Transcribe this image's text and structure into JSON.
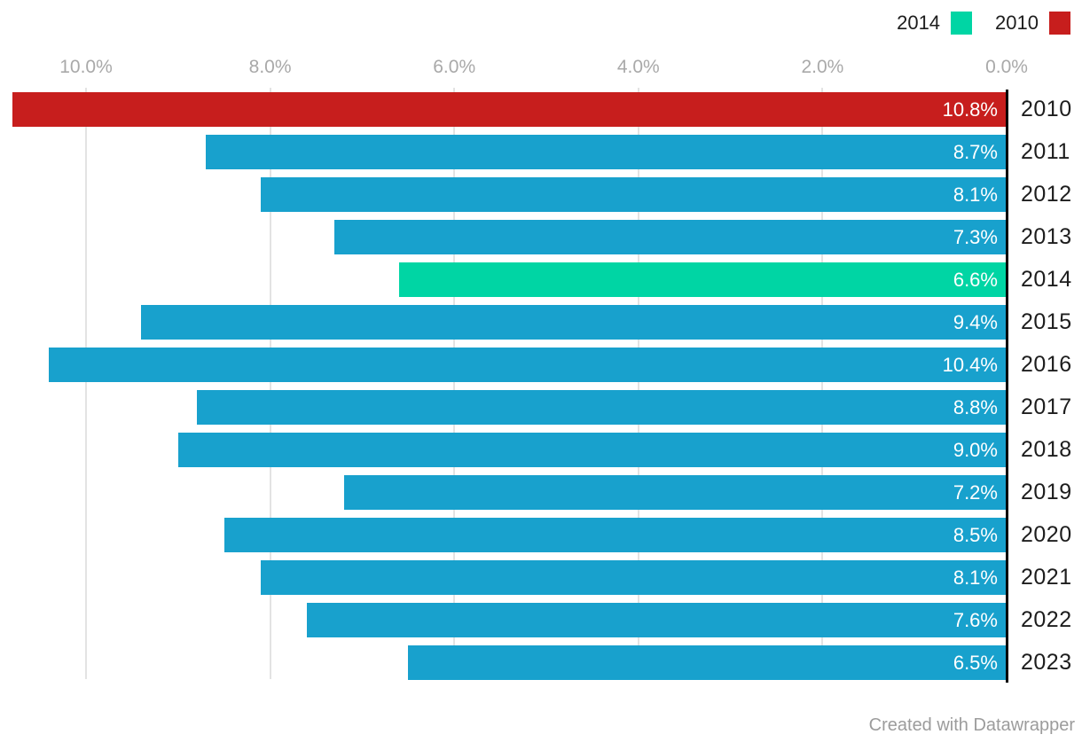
{
  "legend": {
    "items": [
      {
        "label": "2014",
        "color": "#00d5a4"
      },
      {
        "label": "2010",
        "color": "#c71e1d"
      }
    ]
  },
  "footer": {
    "credit": "Created with Datawrapper"
  },
  "chart_data": {
    "type": "bar",
    "orientation": "horizontal",
    "axis_position": "top",
    "axis_reversed": true,
    "grid": true,
    "legend_position": "top-right",
    "xlim": [
      0,
      10.9
    ],
    "axis": {
      "ticks": [
        {
          "value": 10,
          "label": "10.0%"
        },
        {
          "value": 8,
          "label": "8.0%"
        },
        {
          "value": 6,
          "label": "6.0%"
        },
        {
          "value": 4,
          "label": "4.0%"
        },
        {
          "value": 2,
          "label": "2.0%"
        },
        {
          "value": 0,
          "label": "0.0%"
        }
      ]
    },
    "categories": [
      "2010",
      "2011",
      "2012",
      "2013",
      "2014",
      "2015",
      "2016",
      "2017",
      "2018",
      "2019",
      "2020",
      "2021",
      "2022",
      "2023"
    ],
    "values": [
      10.8,
      8.7,
      8.1,
      7.3,
      6.6,
      9.4,
      10.4,
      8.8,
      9.0,
      7.2,
      8.5,
      8.1,
      7.6,
      6.5
    ],
    "value_labels": [
      "10.8%",
      "8.7%",
      "8.1%",
      "7.3%",
      "6.6%",
      "9.4%",
      "10.4%",
      "8.8%",
      "9.0%",
      "7.2%",
      "8.5%",
      "8.1%",
      "7.6%",
      "6.5%"
    ],
    "colors": {
      "default": "#18a1cd",
      "2010": "#c71e1d",
      "2014": "#00d5a4"
    }
  }
}
